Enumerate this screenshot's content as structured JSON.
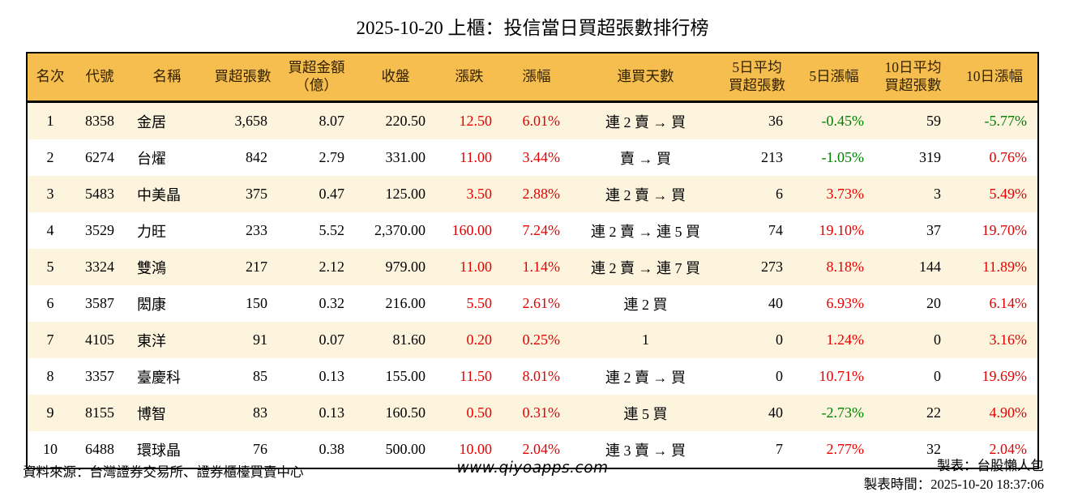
{
  "title": "2025-10-20 上櫃：投信當日買超張數排行榜",
  "colors": {
    "header_bg": "#F6BE4E",
    "header_text": "#332200",
    "row_alt_bg": "#FDF4DE",
    "row_bg": "#FFFFFF",
    "up": "#E60000",
    "down": "#008000",
    "border": "#000000"
  },
  "table": {
    "columns": [
      {
        "key": "rank",
        "label": "名次",
        "align": "center"
      },
      {
        "key": "code",
        "label": "代號",
        "align": "center"
      },
      {
        "key": "name",
        "label": "名稱",
        "align": "left"
      },
      {
        "key": "net_buy_lots",
        "label": "買超張數",
        "align": "right"
      },
      {
        "key": "net_buy_amount",
        "label": "買超金額\n（億）",
        "align": "right"
      },
      {
        "key": "close",
        "label": "收盤",
        "align": "right"
      },
      {
        "key": "change",
        "label": "漲跌",
        "align": "right",
        "sign_color": true
      },
      {
        "key": "change_pct",
        "label": "漲幅",
        "align": "right",
        "sign_color": true
      },
      {
        "key": "streak",
        "label": "連買天數",
        "align": "center"
      },
      {
        "key": "avg5_net_buy",
        "label": "5日平均\n買超張數",
        "align": "right"
      },
      {
        "key": "pct5",
        "label": "5日漲幅",
        "align": "right",
        "sign_color": true
      },
      {
        "key": "avg10_net_buy",
        "label": "10日平均\n買超張數",
        "align": "right"
      },
      {
        "key": "pct10",
        "label": "10日漲幅",
        "align": "right",
        "sign_color": true
      }
    ],
    "rows": [
      [
        "1",
        "8358",
        "金居",
        "3,658",
        "8.07",
        "220.50",
        "12.50",
        "6.01%",
        "連 2 賣 → 買",
        "36",
        "-0.45%",
        "59",
        "-5.77%"
      ],
      [
        "2",
        "6274",
        "台燿",
        "842",
        "2.79",
        "331.00",
        "11.00",
        "3.44%",
        "賣 → 買",
        "213",
        "-1.05%",
        "319",
        "0.76%"
      ],
      [
        "3",
        "5483",
        "中美晶",
        "375",
        "0.47",
        "125.00",
        "3.50",
        "2.88%",
        "連 2 賣 → 買",
        "6",
        "3.73%",
        "3",
        "5.49%"
      ],
      [
        "4",
        "3529",
        "力旺",
        "233",
        "5.52",
        "2,370.00",
        "160.00",
        "7.24%",
        "連 2 賣 → 連 5 買",
        "74",
        "19.10%",
        "37",
        "19.70%"
      ],
      [
        "5",
        "3324",
        "雙鴻",
        "217",
        "2.12",
        "979.00",
        "11.00",
        "1.14%",
        "連 2 賣 → 連 7 買",
        "273",
        "8.18%",
        "144",
        "11.89%"
      ],
      [
        "6",
        "3587",
        "閎康",
        "150",
        "0.32",
        "216.00",
        "5.50",
        "2.61%",
        "連 2 買",
        "40",
        "6.93%",
        "20",
        "6.14%"
      ],
      [
        "7",
        "4105",
        "東洋",
        "91",
        "0.07",
        "81.60",
        "0.20",
        "0.25%",
        "1",
        "0",
        "1.24%",
        "0",
        "3.16%"
      ],
      [
        "8",
        "3357",
        "臺慶科",
        "85",
        "0.13",
        "155.00",
        "11.50",
        "8.01%",
        "連 2 賣 → 買",
        "0",
        "10.71%",
        "0",
        "19.69%"
      ],
      [
        "9",
        "8155",
        "博智",
        "83",
        "0.13",
        "160.50",
        "0.50",
        "0.31%",
        "連 5 買",
        "40",
        "-2.73%",
        "22",
        "4.90%"
      ],
      [
        "10",
        "6488",
        "環球晶",
        "76",
        "0.38",
        "500.00",
        "10.00",
        "2.04%",
        "連 3 賣 → 買",
        "7",
        "2.77%",
        "32",
        "2.04%"
      ]
    ]
  },
  "footer": {
    "source": "資料來源：台灣證券交易所、證券櫃檯買賣中心",
    "website": "www.qiyoapps.com",
    "maker": "製表：台股懶人包",
    "made_at": "製表時間：2025-10-20 18:37:06"
  }
}
